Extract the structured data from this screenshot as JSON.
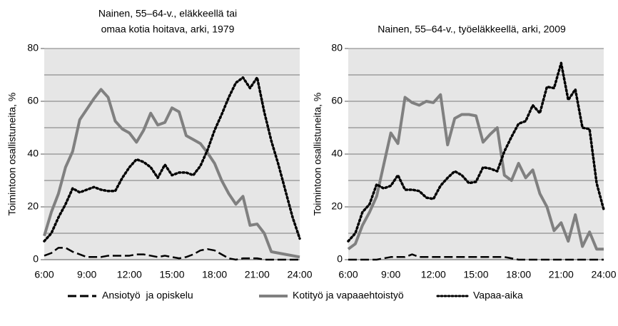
{
  "chart_data": [
    {
      "type": "line",
      "title": [
        "Nainen, 55–64-v., eläkkeellä tai",
        "omaa kotia hoitava, arki, 1979"
      ],
      "ylabel": "Toimintoon osallistuneita, %",
      "categories": [
        "6:00",
        null,
        null,
        null,
        null,
        null,
        "9:00",
        null,
        null,
        null,
        null,
        null,
        "12:00",
        null,
        null,
        null,
        null,
        null,
        "15:00",
        null,
        null,
        null,
        null,
        null,
        "18:00",
        null,
        null,
        null,
        null,
        null,
        "21:00",
        null,
        null,
        null,
        null,
        null,
        "24:00"
      ],
      "ylim": [
        0,
        80
      ],
      "yticks": [
        0,
        20,
        40,
        60,
        80
      ],
      "ygrid": [
        10,
        20,
        30,
        40,
        50,
        60,
        70,
        80
      ],
      "background": "#e6e6e6",
      "series": [
        {
          "name": "Ansiotyö  ja opiskelu",
          "color": "#000000",
          "style": "dashed",
          "values": [
            1.5,
            2.5,
            4.5,
            4.5,
            3,
            2,
            1,
            1,
            1,
            1.5,
            1.5,
            1.5,
            1.5,
            2,
            2,
            1.5,
            1,
            1.5,
            1,
            0.5,
            1,
            2,
            3.5,
            4,
            3.5,
            2,
            0.5,
            0,
            0.5,
            0.5,
            0.5,
            0,
            0,
            0,
            0,
            0,
            0
          ]
        },
        {
          "name": "Kotityö ja vapaaehtoistyö",
          "color": "#808080",
          "style": "solid",
          "values": [
            9,
            18,
            25,
            35,
            41,
            53,
            57,
            61,
            64.5,
            61.5,
            52.5,
            49.5,
            48,
            44.5,
            49,
            55.5,
            51,
            52,
            57.5,
            56,
            47,
            45.5,
            44,
            40.5,
            36.5,
            30,
            25,
            21,
            24,
            13,
            13.5,
            10,
            3,
            2.5,
            2,
            1.5,
            1
          ]
        },
        {
          "name": "Vapaa-aika",
          "color": "#000000",
          "style": "dotted",
          "values": [
            7,
            10,
            16,
            21,
            27,
            25.5,
            26.5,
            27.5,
            26.5,
            26,
            26,
            31,
            35,
            38,
            37,
            35,
            31,
            36,
            32,
            33,
            33,
            32,
            35.5,
            41.5,
            49,
            55,
            61.5,
            67,
            69,
            65,
            69,
            56,
            45,
            36,
            26,
            16,
            8
          ]
        }
      ]
    },
    {
      "type": "line",
      "title": [
        "Nainen, 55–64-v., työeläkkeellä, arki, 2009"
      ],
      "ylabel": "Toimintoon osallistuneita, %",
      "categories": [
        "6:00",
        null,
        null,
        null,
        null,
        null,
        "9:00",
        null,
        null,
        null,
        null,
        null,
        "12:00",
        null,
        null,
        null,
        null,
        null,
        "15:00",
        null,
        null,
        null,
        null,
        null,
        "18:00",
        null,
        null,
        null,
        null,
        null,
        "21:00",
        null,
        null,
        null,
        null,
        null,
        "24:00"
      ],
      "ylim": [
        0,
        80
      ],
      "yticks": [
        0,
        20,
        40,
        60,
        80
      ],
      "ygrid": [
        10,
        20,
        30,
        40,
        50,
        60,
        70,
        80
      ],
      "background": "#e6e6e6",
      "series": [
        {
          "name": "Ansiotyö  ja opiskelu",
          "color": "#000000",
          "style": "dashed",
          "values": [
            0,
            0,
            0,
            0,
            0,
            0.5,
            1,
            1,
            1,
            2,
            1,
            1,
            1,
            1,
            1,
            1,
            1,
            1,
            1,
            1,
            1,
            1,
            1,
            0.5,
            0,
            0,
            0,
            0,
            0,
            0,
            0,
            0,
            0,
            0,
            0,
            0,
            0
          ]
        },
        {
          "name": "Kotityö ja vapaaehtoistyö",
          "color": "#808080",
          "style": "solid",
          "values": [
            4,
            6,
            13,
            18,
            24,
            36,
            48,
            44,
            61.5,
            59.5,
            58.5,
            60,
            59.5,
            62.5,
            43.5,
            53.5,
            55,
            55,
            54.5,
            44.5,
            47.5,
            50,
            32,
            30,
            36.5,
            31,
            34,
            25,
            20,
            11,
            14,
            7,
            17,
            5,
            10.5,
            4,
            4
          ]
        },
        {
          "name": "Vapaa-aika",
          "color": "#000000",
          "style": "dotted",
          "values": [
            7,
            10,
            18,
            21,
            28.5,
            27,
            28,
            32,
            26.5,
            26.5,
            26,
            23.5,
            23,
            28,
            31,
            33.5,
            32,
            29,
            29.5,
            35,
            34.5,
            33.5,
            41,
            46.5,
            51.5,
            52.5,
            58.5,
            55.5,
            65.5,
            65,
            74.5,
            60.5,
            64.5,
            50,
            49.5,
            29,
            19
          ]
        }
      ]
    }
  ]
}
